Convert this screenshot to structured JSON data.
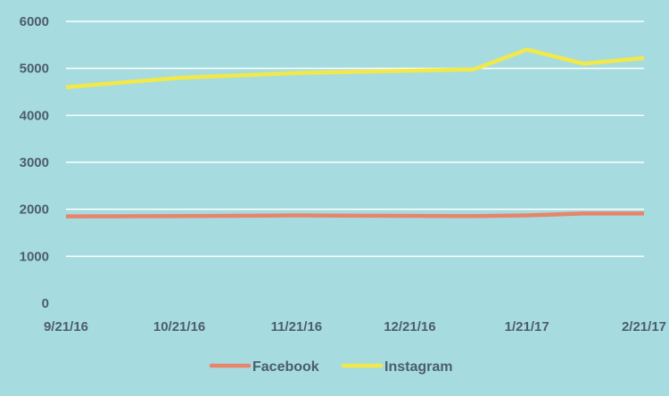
{
  "chart_data": {
    "type": "line",
    "title": "",
    "xlabel": "",
    "ylabel": "",
    "ylim": [
      0,
      6000
    ],
    "y_ticks": [
      0,
      1000,
      2000,
      3000,
      4000,
      5000,
      6000
    ],
    "x_tick_labels": [
      "9/21/16",
      "10/21/16",
      "11/21/16",
      "12/21/16",
      "1/21/17",
      "2/21/17"
    ],
    "x": [
      "9/21/16",
      "10/21/16",
      "11/21/16",
      "12/21/16",
      "1/7/17",
      "1/21/17",
      "2/5/17",
      "2/21/17"
    ],
    "series": [
      {
        "name": "Facebook",
        "color": "#e8846a",
        "values": [
          1850,
          1855,
          1870,
          1860,
          1855,
          1870,
          1910,
          1910
        ]
      },
      {
        "name": "Instagram",
        "color": "#f2e84a",
        "values": [
          4600,
          4800,
          4900,
          4950,
          4980,
          5400,
          5100,
          5220
        ]
      }
    ],
    "grid": true,
    "legend_position": "bottom"
  }
}
